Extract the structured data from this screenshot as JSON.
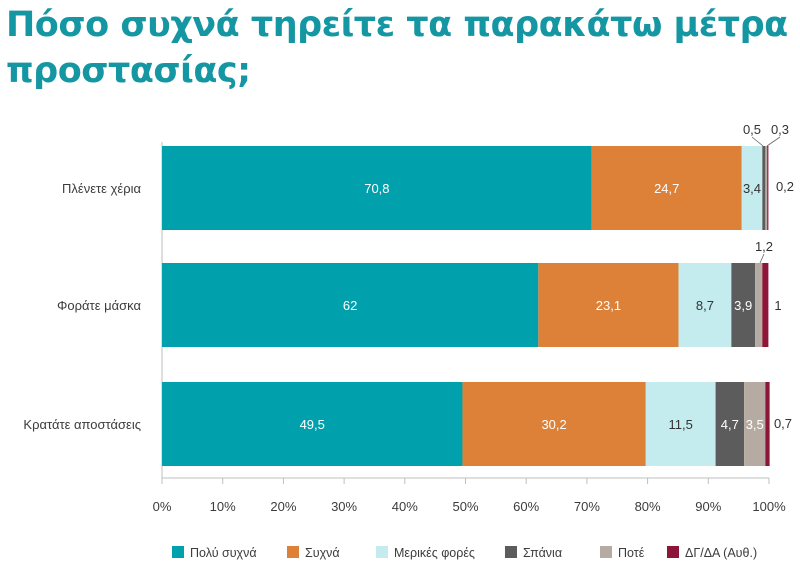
{
  "title": {
    "line1": "Πόσο συχνά τηρείτε τα παρακάτω μέτρα",
    "line2": "προστασίας;"
  },
  "colors": {
    "title": "#1496A3",
    "text": "#3C3C3C",
    "axis": "#BFBFBF"
  },
  "chart_data": {
    "type": "bar",
    "orientation": "horizontal",
    "stacked": true,
    "categories": [
      "Πλένετε χέρια",
      "Φοράτε μάσκα",
      "Κρατάτε αποστάσεις"
    ],
    "series": [
      {
        "name": "Πολύ συχνά",
        "color": "#00A0AD",
        "values": [
          70.8,
          62,
          49.5
        ],
        "labels": [
          "70,8",
          "62",
          "49,5"
        ]
      },
      {
        "name": "Συχνά",
        "color": "#DD8139",
        "values": [
          24.7,
          23.1,
          30.2
        ],
        "labels": [
          "24,7",
          "23,1",
          "30,2"
        ]
      },
      {
        "name": "Μερικές φορές",
        "color": "#C4EBEE",
        "values": [
          3.4,
          8.7,
          11.5
        ],
        "labels": [
          "3,4",
          "8,7",
          "11,5"
        ]
      },
      {
        "name": "Σπάνια",
        "color": "#5C5C5C",
        "values": [
          0.5,
          3.9,
          4.7
        ],
        "labels": [
          "0,5",
          "3,9",
          "4,7"
        ]
      },
      {
        "name": "Ποτέ",
        "color": "#B5ABA2",
        "values": [
          0.3,
          1.2,
          3.5
        ],
        "labels": [
          "0,3",
          "1,2",
          "3,5"
        ]
      },
      {
        "name": "ΔΓ/ΔΑ (Αυθ.)",
        "color": "#8C1538",
        "values": [
          0.2,
          1,
          0.7
        ],
        "labels": [
          "0,2",
          "1",
          "0,7"
        ]
      }
    ],
    "xlim": [
      0,
      100
    ],
    "x_ticks": [
      "0%",
      "10%",
      "20%",
      "30%",
      "40%",
      "50%",
      "60%",
      "70%",
      "80%",
      "90%",
      "100%"
    ],
    "grid": false,
    "legend_position": "bottom"
  }
}
